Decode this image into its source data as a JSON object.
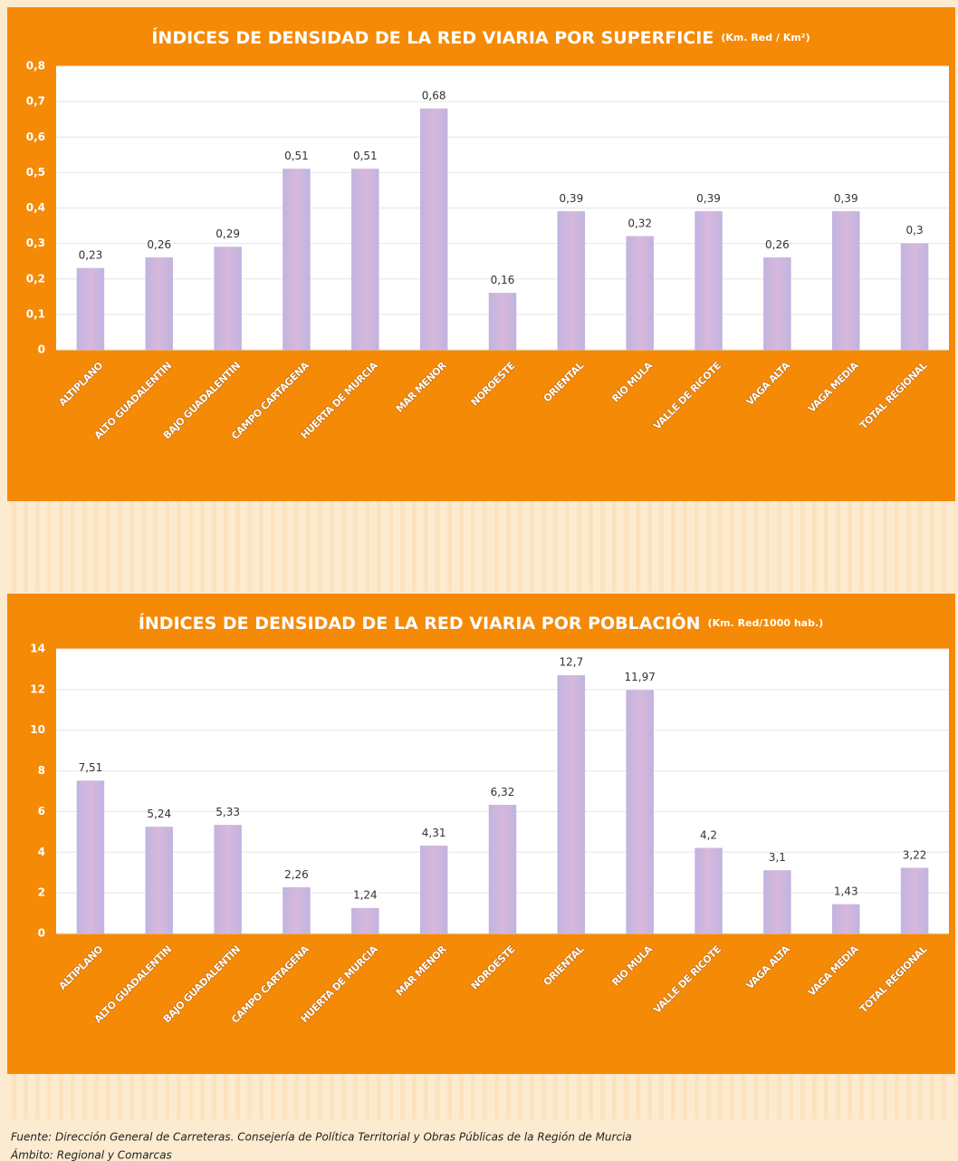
{
  "chart_data": [
    {
      "type": "bar",
      "title": "ÍNDICES DE DENSIDAD DE LA RED VIARIA POR SUPERFICIE",
      "unit": "(Km. Red / Km²)",
      "categories": [
        "ALTIPLANO",
        "ALTO GUADALENTIN",
        "BAJO GUADALENTÍN",
        "CAMPO CARTAGENA",
        "HUERTA DE MURCIA",
        "MAR MENOR",
        "NOROESTE",
        "ORIENTAL",
        "RÍO MULA",
        "VALLE DE RICOTE",
        "VAGA ALTA",
        "VAGA MEDIA",
        "TOTAL REGIONAL"
      ],
      "values": [
        0.23,
        0.26,
        0.29,
        0.51,
        0.51,
        0.68,
        0.16,
        0.39,
        0.32,
        0.39,
        0.26,
        0.39,
        0.3
      ],
      "value_labels": [
        "0,23",
        "0,26",
        "0,29",
        "0,51",
        "0,51",
        "0,68",
        "0,16",
        "0,39",
        "0,32",
        "0,39",
        "0,26",
        "0,39",
        "0,3"
      ],
      "color": "#c8b4dc",
      "ylim": [
        0,
        0.8
      ],
      "yticks": [
        0,
        {
          "value": 0.1,
          "label": "0,1"
        },
        {
          "value": 0.2,
          "label": "0,2"
        },
        {
          "value": 0.3,
          "label": "0,3"
        },
        {
          "value": 0.4,
          "label": "0,4"
        },
        {
          "value": 0.5,
          "label": "0,5"
        },
        {
          "value": 0.6,
          "label": "0,6"
        },
        {
          "value": 0.7,
          "label": "0,7"
        },
        {
          "value": 0.8,
          "label": "0,8"
        }
      ],
      "grid": true
    },
    {
      "type": "bar",
      "title": "ÍNDICES DE DENSIDAD DE LA RED VIARIA POR POBLACIÓN",
      "unit": "(Km. Red/1000 hab.)",
      "categories": [
        "ALTIPLANO",
        "ALTO GUADALENTIN",
        "BAJO GUADALENTÍN",
        "CAMPO CARTAGENA",
        "HUERTA DE MURCIA",
        "MAR MENOR",
        "NOROESTE",
        "ORIENTAL",
        "RÍO MULA",
        "VALLE DE RICOTE",
        "VAGA ALTA",
        "VAGA MEDIA",
        "TOTAL REGIONAL"
      ],
      "values": [
        7.51,
        5.24,
        5.33,
        2.26,
        1.24,
        4.31,
        6.32,
        12.7,
        11.97,
        4.2,
        3.1,
        1.43,
        3.22
      ],
      "value_labels": [
        "7,51",
        "5,24",
        "5,33",
        "2,26",
        "1,24",
        "4,31",
        "6,32",
        "12,7",
        "11,97",
        "4,2",
        "3,1",
        "1,43",
        "3,22"
      ],
      "color": "#c8b4dc",
      "ylim": [
        0,
        14
      ],
      "yticks": [
        0,
        2,
        4,
        6,
        8,
        10,
        12,
        14
      ],
      "grid": true
    }
  ],
  "footer": {
    "source": "Fuente: Dirección General de Carreteras. Consejería de Política Territorial y Obras Públicas de la Región de Murcia",
    "scope": "Ámbito: Regional y Comarcas"
  }
}
